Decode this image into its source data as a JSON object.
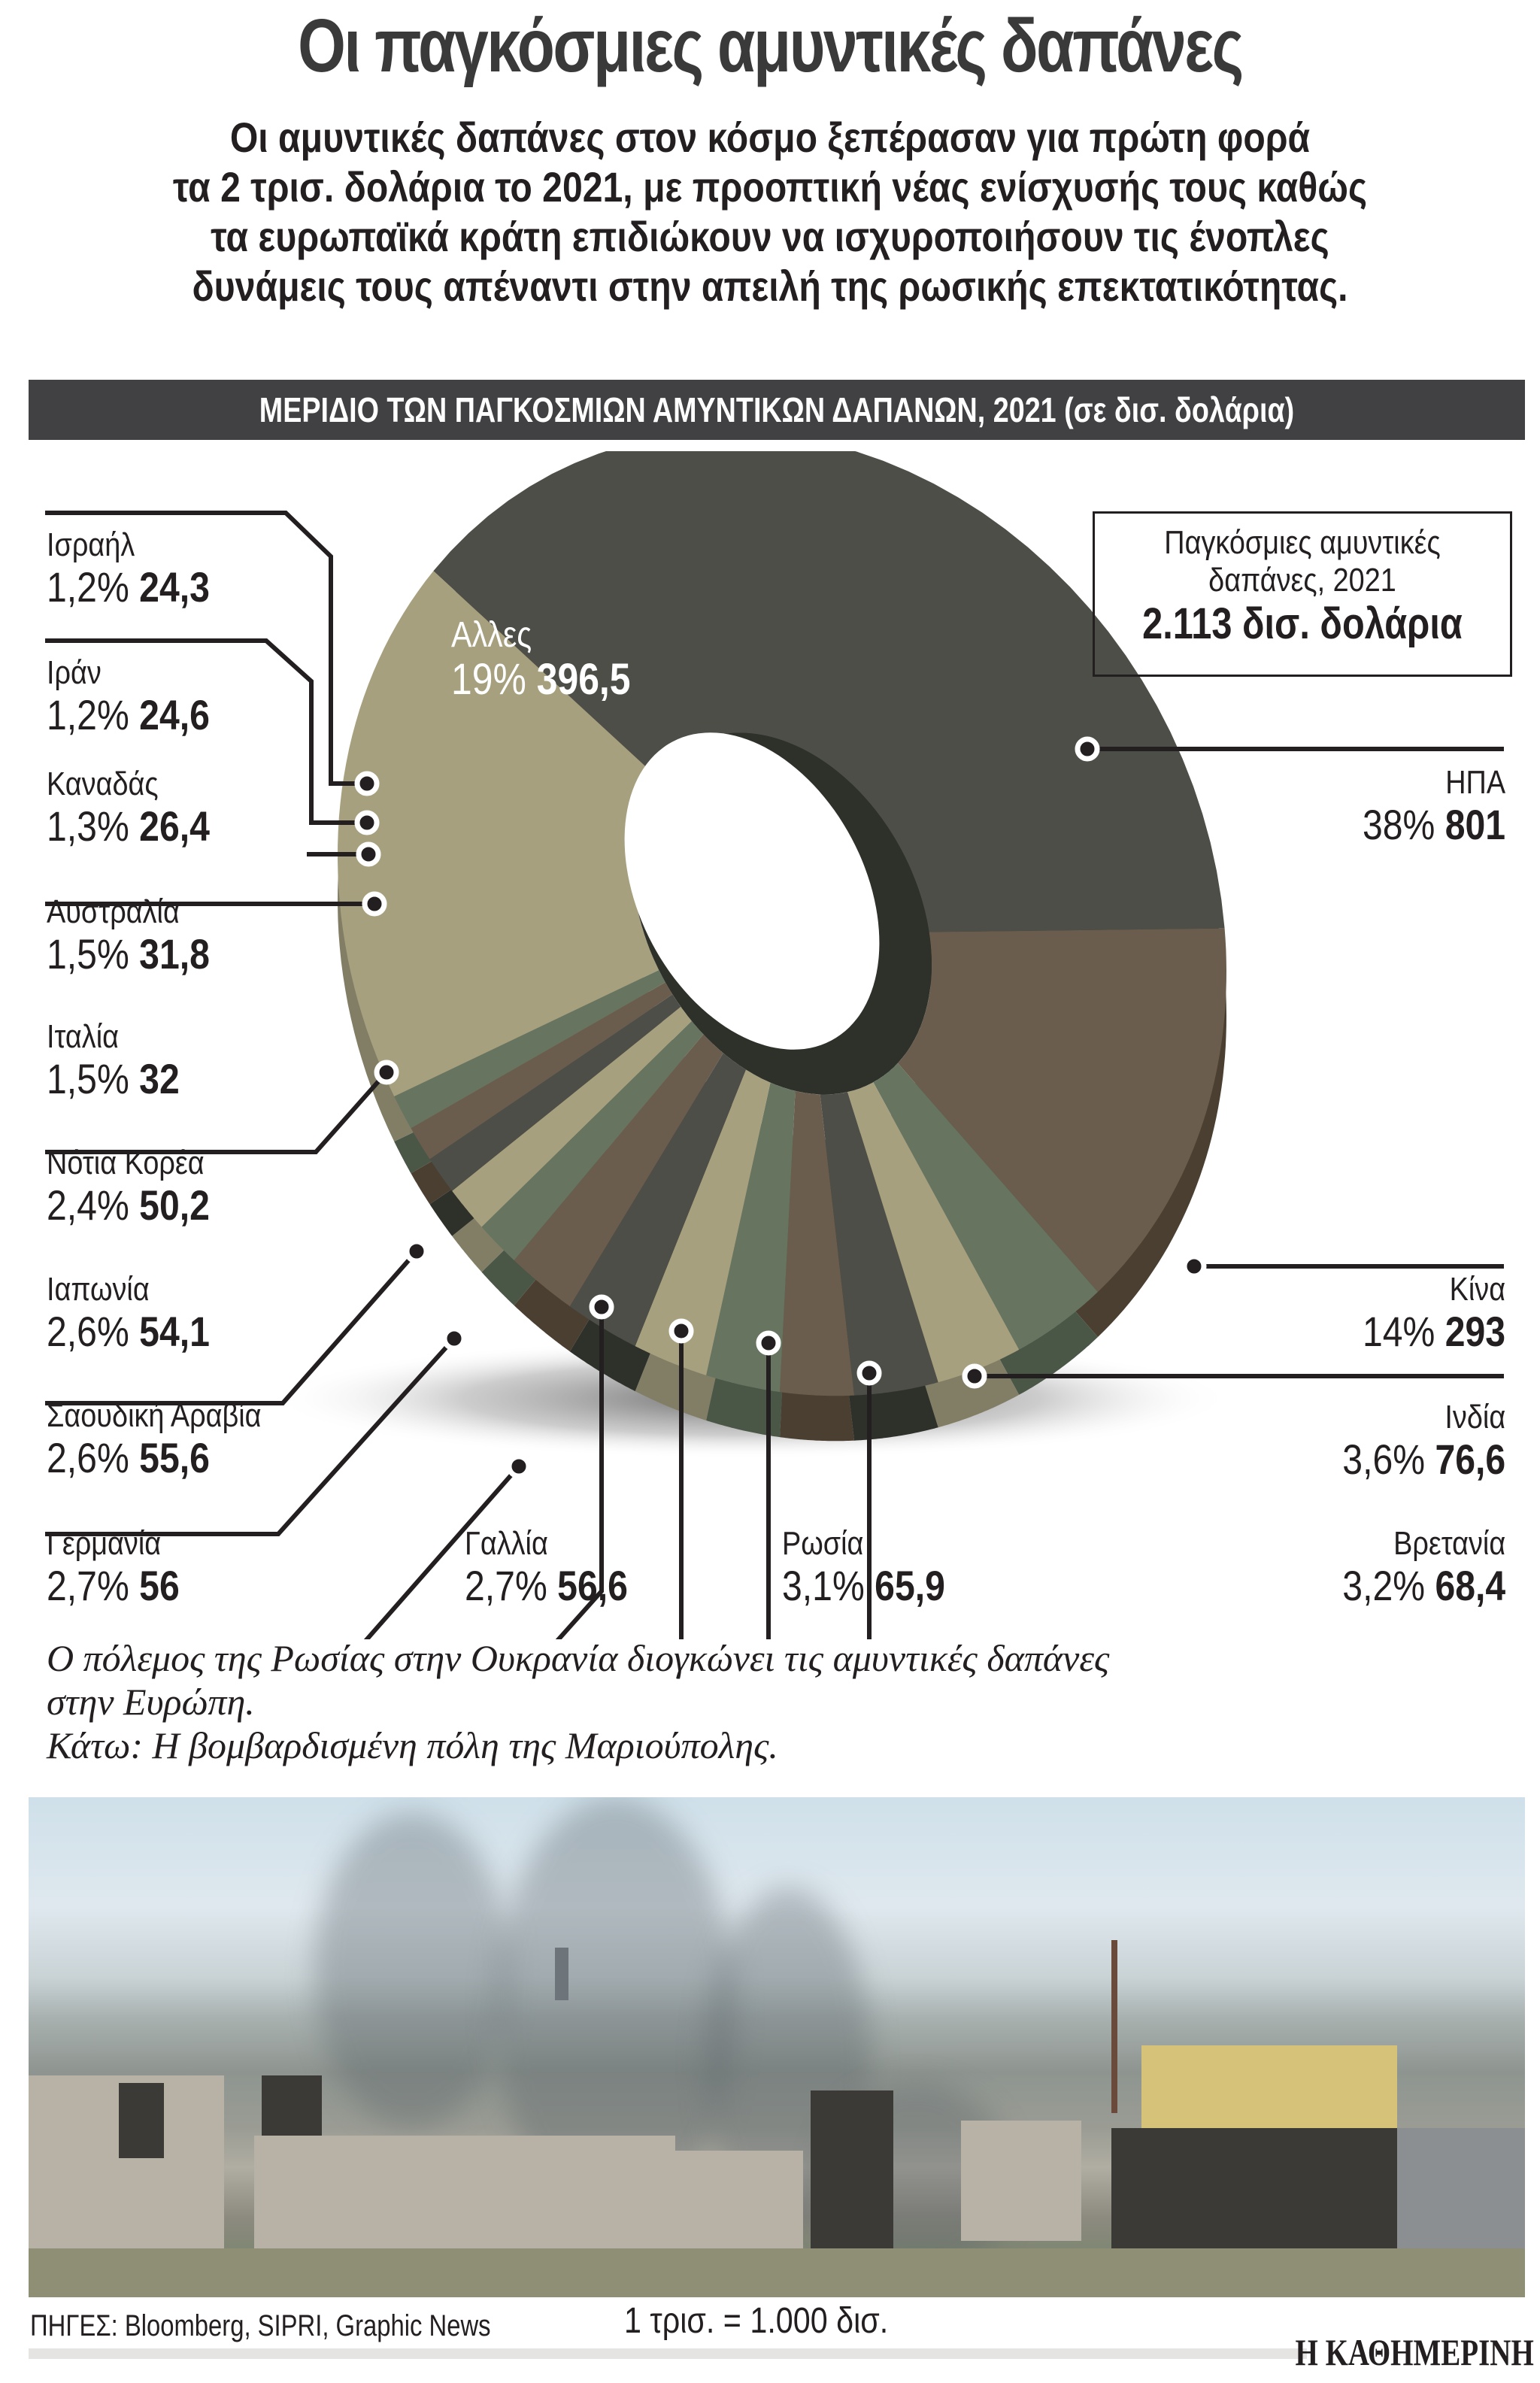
{
  "header": {
    "title": "Οι παγκόσμιες αμυντικές δαπάνες",
    "subtitle_lines": [
      "Οι αμυντικές δαπάνες στον κόσμο ξεπέρασαν για πρώτη φορά",
      "τα 2 τρισ. δολάρια το 2021, με προοπτική νέας ενίσχυσής τους καθώς",
      "τα ευρωπαϊκά κράτη επιδιώκουν να ισχυροποιήσουν τις ένοπλες",
      "δυνάμεις τους απέναντι στην απειλή της ρωσικής επεκτατικότητας."
    ],
    "section_bar": "ΜΕΡΙΔΙΟ ΤΩΝ ΠΑΓΚΟΣΜΙΩΝ ΑΜΥΝΤΙΚΩΝ ΔΑΠΑΝΩΝ, 2021 (σε δισ. δολάρια)"
  },
  "total_box": {
    "line1": "Παγκόσμιες αμυντικές",
    "line2": "δαπάνες, 2021",
    "line3": "2.113 δισ. δολάρια"
  },
  "labels": {
    "usa": {
      "name": "ΗΠΑ",
      "pct": "38%",
      "value": "801"
    },
    "china": {
      "name": "Κίνα",
      "pct": "14%",
      "value": "293"
    },
    "india": {
      "name": "Ινδία",
      "pct": "3,6%",
      "value": "76,6"
    },
    "uk": {
      "name": "Βρετανία",
      "pct": "3,2%",
      "value": "68,4"
    },
    "russia": {
      "name": "Ρωσία",
      "pct": "3,1%",
      "value": "65,9"
    },
    "france": {
      "name": "Γαλλία",
      "pct": "2,7%",
      "value": "56,6"
    },
    "germany": {
      "name": "Γερμανία",
      "pct": "2,7%",
      "value": "56"
    },
    "saudi": {
      "name": "Σαουδική Αραβία",
      "pct": "2,6%",
      "value": "55,6"
    },
    "japan": {
      "name": "Ιαπωνία",
      "pct": "2,6%",
      "value": "54,1"
    },
    "skorea": {
      "name": "Νότια Κορέα",
      "pct": "2,4%",
      "value": "50,2"
    },
    "italy": {
      "name": "Ιταλία",
      "pct": "1,5%",
      "value": "32"
    },
    "australia": {
      "name": "Αυστραλία",
      "pct": "1,5%",
      "value": "31,8"
    },
    "canada": {
      "name": "Καναδάς",
      "pct": "1,3%",
      "value": "26,4"
    },
    "iran": {
      "name": "Ιράν",
      "pct": "1,2%",
      "value": "24,6"
    },
    "israel": {
      "name": "Ισραήλ",
      "pct": "1,2%",
      "value": "24,3"
    },
    "others": {
      "name": "Αλλες",
      "pct": "19%",
      "value": "396,5"
    }
  },
  "caption": {
    "line1": "Ο πόλεμος της Ρωσίας στην Ουκρανία διογκώνει τις αμυντικές δαπάνες",
    "line2": "στην Ευρώπη.",
    "line3": "Κάτω: Η βομβαρδισμένη πόλη της Μαριούπολης."
  },
  "footer": {
    "sources": "ΠΗΓΕΣ: Bloomberg, SIPRI, Graphic News",
    "unit_note": "1 τρισ. = 1.000 δισ.",
    "brand": "Η ΚΑΘΗΜΕΡΙΝΗ"
  },
  "colors": {
    "header_bar": "#414042",
    "text": "#231f20",
    "slice_olive_light": "#a6a07e",
    "slice_charcoal": "#4d4e47",
    "slice_brown": "#6b5d4d",
    "slice_green": "#667460",
    "slice_dark": "#2e302a",
    "slice_khaki_dark": "#827e66",
    "slice_green_dark": "#4a5646",
    "slice_brown_dark": "#4a3f30"
  },
  "chart_data": {
    "type": "pie",
    "title": "ΜΕΡΙΔΙΟ ΤΩΝ ΠΑΓΚΟΣΜΙΩΝ ΑΜΥΝΤΙΚΩΝ ΔΑΠΑΝΩΝ, 2021 (σε δισ. δολάρια)",
    "subtitle": "Παγκόσμιες αμυντικές δαπάνες, 2021: 2.113 δισ. δολάρια",
    "unit": "δισ. δολάρια",
    "donut": true,
    "total": 2113,
    "categories": [
      "ΗΠΑ",
      "Κίνα",
      "Ινδία",
      "Βρετανία",
      "Ρωσία",
      "Γαλλία",
      "Γερμανία",
      "Σαουδική Αραβία",
      "Ιαπωνία",
      "Νότια Κορέα",
      "Ιταλία",
      "Αυστραλία",
      "Καναδάς",
      "Ιράν",
      "Ισραήλ",
      "Αλλες"
    ],
    "values": [
      801,
      293,
      76.6,
      68.4,
      65.9,
      56.6,
      56,
      55.6,
      54.1,
      50.2,
      32,
      31.8,
      26.4,
      24.6,
      24.3,
      396.5
    ],
    "percentages": [
      38,
      14,
      3.6,
      3.2,
      3.1,
      2.7,
      2.7,
      2.6,
      2.6,
      2.4,
      1.5,
      1.5,
      1.3,
      1.2,
      1.2,
      19
    ],
    "legend_position": "callout labels around donut"
  }
}
